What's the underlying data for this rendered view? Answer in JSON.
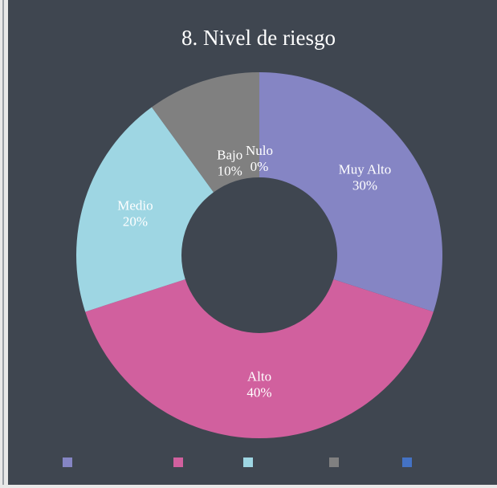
{
  "chart_data": {
    "type": "donut",
    "title": "8. Nivel de riesgo",
    "categories": [
      "Muy Alto",
      "Alto",
      "Medio",
      "Bajo",
      "Nulo"
    ],
    "values": [
      30,
      40,
      20,
      10,
      0
    ],
    "value_labels": [
      "30%",
      "40%",
      "20%",
      "10%",
      "0%"
    ],
    "colors": [
      "#8585c4",
      "#d1609e",
      "#9ed6e3",
      "#808080",
      "#4472c4"
    ],
    "legend": "bottom"
  }
}
